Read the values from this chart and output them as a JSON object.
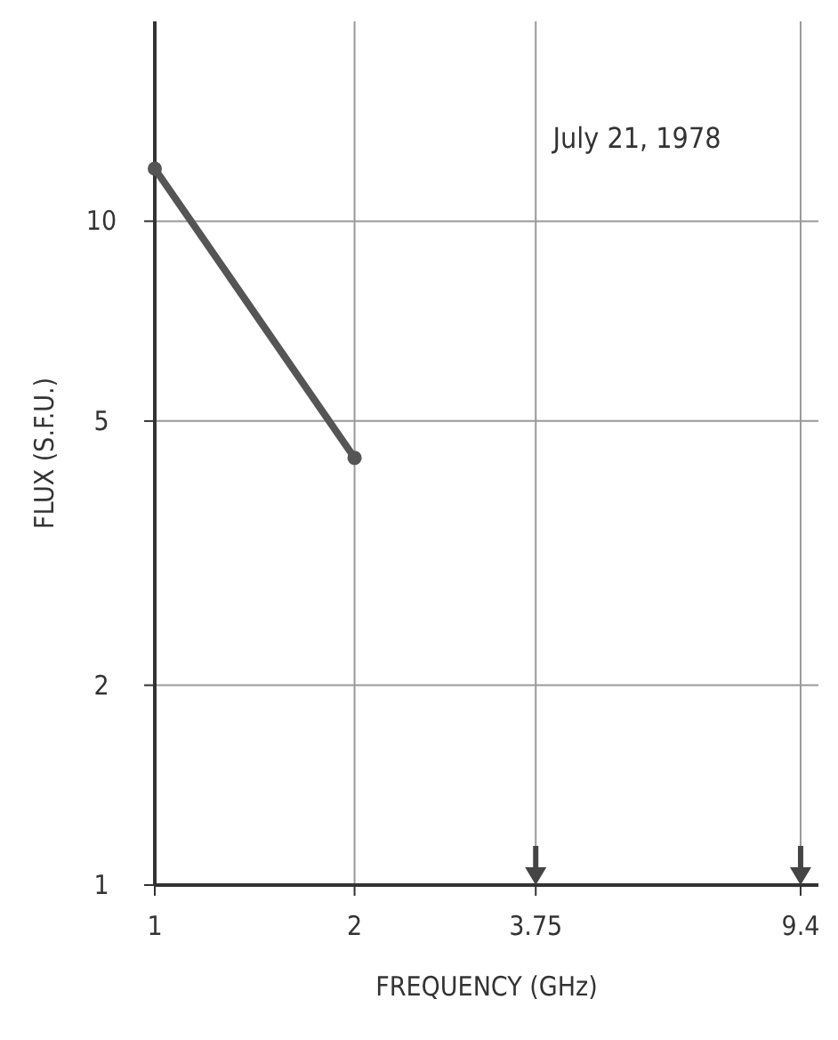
{
  "chart_data": {
    "type": "line",
    "xlabel": "FREQUENCY (GHz)",
    "ylabel": "FLUX (S.F.U.)",
    "annotations": [
      "July 21, 1978"
    ],
    "log": "xy",
    "xlim": [
      1,
      10
    ],
    "ylim": [
      1,
      20
    ],
    "xticks": [
      1,
      2,
      3.75,
      9.4
    ],
    "yticks": [
      1,
      2,
      5,
      10
    ],
    "grid": true,
    "marker": "circle",
    "line_style": "solid",
    "series": [
      {
        "color": "#555555",
        "x": [
          1,
          2
        ],
        "values": [
          12,
          4.4
        ]
      }
    ]
  }
}
